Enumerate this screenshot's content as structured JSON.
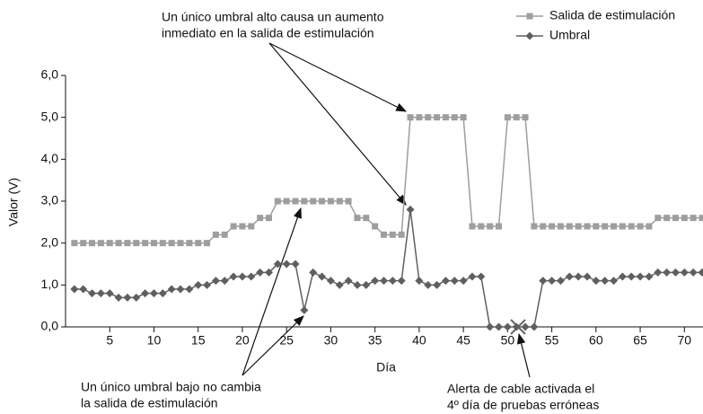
{
  "chart_data": {
    "type": "line",
    "x": [
      1,
      2,
      3,
      4,
      5,
      6,
      7,
      8,
      9,
      10,
      11,
      12,
      13,
      14,
      15,
      16,
      17,
      18,
      19,
      20,
      21,
      22,
      23,
      24,
      25,
      26,
      27,
      28,
      29,
      30,
      31,
      32,
      33,
      34,
      35,
      36,
      37,
      38,
      39,
      40,
      41,
      42,
      43,
      44,
      45,
      46,
      47,
      48,
      49,
      50,
      51,
      52,
      53,
      54,
      55,
      56,
      57,
      58,
      59,
      60,
      61,
      62,
      63,
      64,
      65,
      66,
      67,
      68,
      69,
      70,
      71,
      72
    ],
    "series": [
      {
        "name": "Salida de estimulación",
        "color": "#9e9e9e",
        "marker": "square",
        "values": [
          2.0,
          2.0,
          2.0,
          2.0,
          2.0,
          2.0,
          2.0,
          2.0,
          2.0,
          2.0,
          2.0,
          2.0,
          2.0,
          2.0,
          2.0,
          2.0,
          2.2,
          2.2,
          2.4,
          2.4,
          2.4,
          2.6,
          2.6,
          3.0,
          3.0,
          3.0,
          3.0,
          3.0,
          3.0,
          3.0,
          3.0,
          3.0,
          2.6,
          2.6,
          2.4,
          2.2,
          2.2,
          2.2,
          5.0,
          5.0,
          5.0,
          5.0,
          5.0,
          5.0,
          5.0,
          2.4,
          2.4,
          2.4,
          2.4,
          5.0,
          5.0,
          5.0,
          2.4,
          2.4,
          2.4,
          2.4,
          2.4,
          2.4,
          2.4,
          2.4,
          2.4,
          2.4,
          2.4,
          2.4,
          2.4,
          2.4,
          2.6,
          2.6,
          2.6,
          2.6,
          2.6,
          2.6
        ]
      },
      {
        "name": "Umbral",
        "color": "#5f5f5f",
        "marker": "diamond",
        "values": [
          0.9,
          0.9,
          0.8,
          0.8,
          0.8,
          0.7,
          0.7,
          0.7,
          0.8,
          0.8,
          0.8,
          0.9,
          0.9,
          0.9,
          1.0,
          1.0,
          1.1,
          1.1,
          1.2,
          1.2,
          1.2,
          1.3,
          1.3,
          1.5,
          1.5,
          1.5,
          0.4,
          1.3,
          1.2,
          1.1,
          1.0,
          1.1,
          1.0,
          1.0,
          1.1,
          1.1,
          1.1,
          1.1,
          2.8,
          1.1,
          1.0,
          1.0,
          1.1,
          1.1,
          1.1,
          1.2,
          1.2,
          0,
          0,
          0,
          0,
          0,
          0,
          1.1,
          1.1,
          1.1,
          1.2,
          1.2,
          1.2,
          1.1,
          1.1,
          1.1,
          1.2,
          1.2,
          1.2,
          1.2,
          1.3,
          1.3,
          1.3,
          1.3,
          1.3,
          1.3
        ]
      }
    ],
    "xlabel": "Día",
    "ylabel": "Valor (V)",
    "xlim": [
      0,
      72
    ],
    "xticks": [
      5,
      10,
      15,
      20,
      25,
      30,
      35,
      40,
      45,
      50,
      55,
      60,
      65,
      70
    ],
    "ylim": [
      0,
      6
    ],
    "yticks": [
      {
        "value": 0,
        "label": "0,0"
      },
      {
        "value": 1,
        "label": "1,0"
      },
      {
        "value": 2,
        "label": "2,0"
      },
      {
        "value": 3,
        "label": "3,0"
      },
      {
        "value": 4,
        "label": "4,0"
      },
      {
        "value": 5,
        "label": "5,0"
      },
      {
        "value": 6,
        "label": "6,0"
      }
    ],
    "legend": "upper right",
    "annotations": [
      {
        "text": [
          "Un único umbral alto causa un aumento",
          "inmediato en la salida de estimulación"
        ]
      },
      {
        "text": [
          "Un único umbral bajo no cambia",
          "la salida de estimulación"
        ]
      },
      {
        "text": [
          "Alerta de cable activada el",
          "4º día de pruebas erróneas"
        ]
      }
    ]
  }
}
